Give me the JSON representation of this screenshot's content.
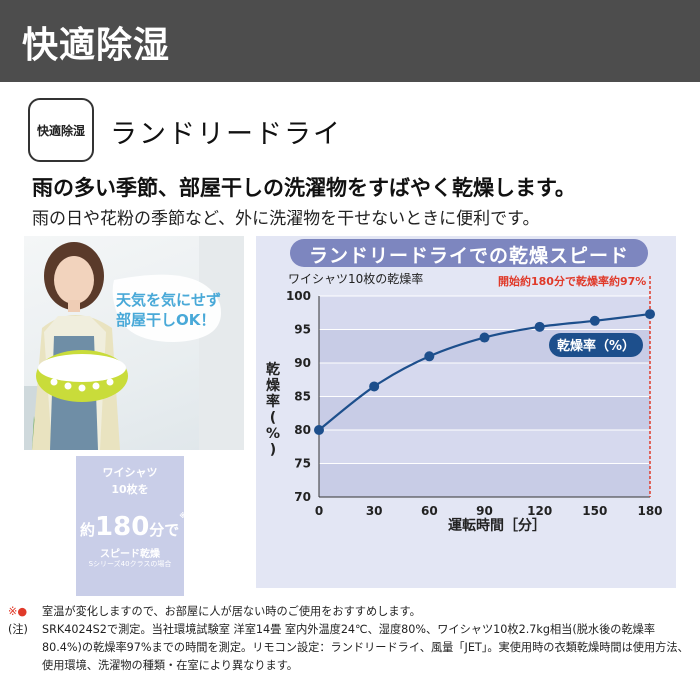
{
  "header": {
    "title": "快適除湿"
  },
  "mode": {
    "badge": "快適除湿",
    "name": "ランドリードライ"
  },
  "headline": "雨の多い季節、部屋干しの洗濯物をすばやく乾燥します。",
  "subline": "雨の日や花粉の季節など、外に洗濯物を干せないときに便利です。",
  "photo": {
    "bubble_line1": "天気を気にせず",
    "bubble_line2": "部屋干しOK！"
  },
  "spec": {
    "line1": "ワイシャツ",
    "line2": "10枚を",
    "big_prefix": "約",
    "big_number": "180",
    "big_suffix": "分で",
    "note_mark": "※1",
    "sub": "スピード乾燥",
    "small": "Sシリーズ40クラスの場合"
  },
  "chart_data": {
    "type": "line",
    "title": "ランドリードライでの乾燥スピード",
    "subtitle": "ワイシャツ10枚の乾燥率",
    "annotation": "開始約180分で乾燥率約97%",
    "legend": "乾燥率（%）",
    "xlabel": "運転時間［分］",
    "ylabel": "乾燥率（%）",
    "x": [
      0,
      30,
      60,
      90,
      120,
      150,
      180
    ],
    "y": [
      80,
      86.5,
      91,
      93.8,
      95.4,
      96.3,
      97.3
    ],
    "xlim": [
      0,
      180
    ],
    "ylim": [
      70,
      100
    ],
    "xticks": [
      "0",
      "30",
      "60",
      "90",
      "120",
      "150",
      "180"
    ],
    "yticks": [
      "70",
      "75",
      "80",
      "85",
      "90",
      "95",
      "100"
    ],
    "colors": {
      "line": "#1d4f8c",
      "marker": "#1d4f8c",
      "panel": "#e3e6f4",
      "grid_band": "#c8cce6",
      "marker_line": "#e03a2a"
    },
    "grid": true
  },
  "footnotes": [
    {
      "mark": "※●",
      "text": "室温が変化しますので、お部屋に人が居ない時のご使用をおすすめします。"
    },
    {
      "mark": "(注)",
      "text": "SRK4024S2で測定。当社環境試験室 洋室14畳 室内外温度24℃、湿度80%、ワイシャツ10枚2.7kg相当(脱水後の乾燥率80.4%)の乾燥率97%までの時間を測定。リモコン設定：ランドリードライ、風量「JET」。実使用時の衣類乾燥時間は使用方法、使用環境、洗濯物の種類・在室により異なります。"
    }
  ]
}
